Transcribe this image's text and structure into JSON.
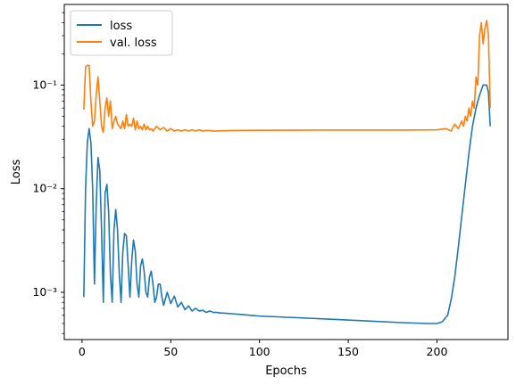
{
  "chart_data": {
    "type": "line",
    "xlabel": "Epochs",
    "ylabel": "Loss",
    "xlim": [
      -10,
      240
    ],
    "ylim": [
      0.00035,
      0.6
    ],
    "yscale": "log",
    "grid": false,
    "legend_position": "top-left",
    "x_ticks": [
      0,
      50,
      100,
      150,
      200
    ],
    "x_tick_labels": [
      "0",
      "50",
      "100",
      "150",
      "200"
    ],
    "y_ticks": [
      0.001,
      0.01,
      0.1
    ],
    "y_tick_labels": [
      "10⁻³",
      "10⁻²",
      "10⁻¹"
    ],
    "series": [
      {
        "name": "loss",
        "color": "#1f77b4",
        "x": [
          1,
          2,
          3,
          4,
          5,
          6,
          7,
          8,
          9,
          10,
          11,
          12,
          13,
          14,
          15,
          16,
          17,
          18,
          19,
          20,
          21,
          22,
          23,
          24,
          25,
          26,
          27,
          28,
          29,
          30,
          31,
          32,
          33,
          34,
          35,
          36,
          37,
          38,
          39,
          40,
          41,
          42,
          43,
          44,
          45,
          46,
          48,
          50,
          52,
          54,
          56,
          58,
          60,
          62,
          64,
          66,
          68,
          70,
          72,
          74,
          76,
          78,
          80,
          85,
          90,
          95,
          100,
          120,
          140,
          160,
          180,
          195,
          200,
          203,
          206,
          208,
          210,
          212,
          214,
          216,
          218,
          220,
          222,
          224,
          226,
          228,
          229,
          230
        ],
        "values": [
          0.0009,
          0.01,
          0.028,
          0.038,
          0.028,
          0.01,
          0.0012,
          0.007,
          0.02,
          0.015,
          0.004,
          0.0008,
          0.009,
          0.011,
          0.006,
          0.0015,
          0.0008,
          0.004,
          0.0063,
          0.004,
          0.0015,
          0.0008,
          0.0025,
          0.0037,
          0.0035,
          0.0018,
          0.0009,
          0.002,
          0.0032,
          0.0025,
          0.0012,
          0.0009,
          0.0018,
          0.0021,
          0.0016,
          0.001,
          0.0009,
          0.0014,
          0.0016,
          0.0012,
          0.0008,
          0.0009,
          0.0012,
          0.0012,
          0.0009,
          0.00075,
          0.001,
          0.00078,
          0.00092,
          0.00072,
          0.0008,
          0.00068,
          0.00074,
          0.00066,
          0.0007,
          0.00066,
          0.00067,
          0.00064,
          0.00066,
          0.00064,
          0.00064,
          0.00063,
          0.00063,
          0.00062,
          0.00061,
          0.0006,
          0.00059,
          0.00057,
          0.00055,
          0.00053,
          0.00051,
          0.0005,
          0.0005,
          0.00052,
          0.0006,
          0.00085,
          0.0014,
          0.0027,
          0.0055,
          0.011,
          0.022,
          0.04,
          0.06,
          0.08,
          0.1,
          0.1,
          0.085,
          0.04
        ]
      },
      {
        "name": "val. loss",
        "color": "#ff7f0e",
        "x": [
          1,
          2,
          3,
          4,
          5,
          6,
          7,
          8,
          9,
          10,
          11,
          12,
          13,
          14,
          15,
          16,
          17,
          18,
          19,
          20,
          21,
          22,
          23,
          24,
          25,
          26,
          27,
          28,
          29,
          30,
          31,
          32,
          33,
          34,
          35,
          36,
          37,
          38,
          39,
          40,
          42,
          44,
          46,
          48,
          50,
          52,
          54,
          56,
          58,
          60,
          62,
          64,
          66,
          68,
          70,
          75,
          80,
          90,
          100,
          120,
          140,
          160,
          180,
          200,
          205,
          208,
          210,
          212,
          214,
          215,
          216,
          217,
          218,
          219,
          220,
          221,
          222,
          223,
          224,
          225,
          226,
          227,
          228,
          229,
          230
        ],
        "values": [
          0.058,
          0.15,
          0.155,
          0.155,
          0.07,
          0.04,
          0.045,
          0.08,
          0.12,
          0.07,
          0.04,
          0.035,
          0.06,
          0.075,
          0.05,
          0.07,
          0.038,
          0.045,
          0.05,
          0.042,
          0.04,
          0.038,
          0.045,
          0.038,
          0.052,
          0.04,
          0.042,
          0.04,
          0.048,
          0.037,
          0.045,
          0.038,
          0.04,
          0.037,
          0.042,
          0.037,
          0.04,
          0.037,
          0.038,
          0.036,
          0.04,
          0.037,
          0.039,
          0.036,
          0.038,
          0.036,
          0.037,
          0.036,
          0.037,
          0.036,
          0.037,
          0.036,
          0.037,
          0.036,
          0.0365,
          0.036,
          0.0363,
          0.0365,
          0.0366,
          0.0367,
          0.0368,
          0.0368,
          0.0368,
          0.037,
          0.038,
          0.036,
          0.042,
          0.038,
          0.045,
          0.04,
          0.05,
          0.045,
          0.06,
          0.05,
          0.07,
          0.06,
          0.12,
          0.1,
          0.3,
          0.4,
          0.25,
          0.35,
          0.42,
          0.3,
          0.06
        ]
      }
    ]
  }
}
